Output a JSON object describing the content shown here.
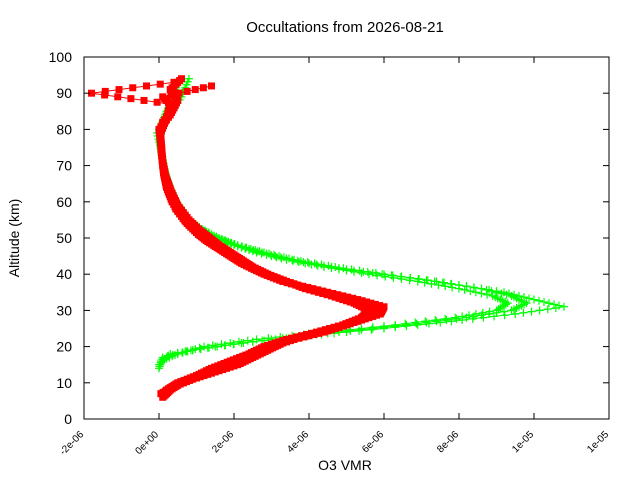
{
  "chart_data": {
    "type": "line",
    "title": "Occultations from 2026-08-21",
    "xlabel": "O3 VMR",
    "ylabel": "Altitude (km)",
    "xlim": [
      -2e-06,
      1.2e-05
    ],
    "ylim": [
      0,
      100
    ],
    "x_ticks": [
      -2e-06,
      0,
      2e-06,
      4e-06,
      6e-06,
      8e-06,
      1e-05,
      1.2e-05
    ],
    "x_tick_labels": [
      "-2e-06",
      "0e+00",
      "2e-06",
      "4e-06",
      "6e-06",
      "8e-06",
      "1e-05",
      "1e-05"
    ],
    "y_ticks": [
      0,
      10,
      20,
      30,
      40,
      50,
      60,
      70,
      80,
      90,
      100
    ],
    "y_tick_labels": [
      "0",
      "10",
      "20",
      "30",
      "40",
      "50",
      "60",
      "70",
      "80",
      "90",
      "100"
    ],
    "grid": false,
    "legend": "none",
    "series": [
      {
        "color": "#00ff00",
        "marker": "plus",
        "profiles": [
          {
            "alt": [
              15,
              18,
              20,
              22,
              24,
              26,
              28,
              30,
              32,
              34,
              36,
              38,
              40,
              42,
              44,
              46,
              48,
              50,
              52,
              55,
              58,
              62,
              66,
              70,
              75,
              80,
              85,
              90,
              93
            ],
            "vmr": [
              0.0,
              3e-07,
              1.5e-06,
              3e-06,
              4.8e-06,
              6.6e-06,
              8.2e-06,
              9.4e-06,
              9.8e-06,
              9.4e-06,
              8.6e-06,
              7.4e-06,
              6e-06,
              4.7e-06,
              3.6e-06,
              2.8e-06,
              2.1e-06,
              1.6e-06,
              1.2e-06,
              8e-07,
              6e-07,
              3.5e-07,
              2e-07,
              1.2e-07,
              5e-08,
              0.0,
              2e-07,
              4e-07,
              5e-07
            ]
          },
          {
            "alt": [
              14,
              17,
              19,
              21,
              23,
              25,
              27,
              29,
              31,
              33,
              35,
              37,
              39,
              41,
              43,
              45,
              47,
              49,
              51,
              54,
              57,
              61,
              65,
              69,
              74,
              79,
              84,
              89,
              94
            ],
            "vmr": [
              0.0,
              1e-07,
              9e-07,
              2.2e-06,
              4e-06,
              6e-06,
              7.8e-06,
              9.5e-06,
              1.08e-05,
              1e-05,
              9.2e-06,
              8e-06,
              6.7e-06,
              5.2e-06,
              4e-06,
              3.1e-06,
              2.4e-06,
              1.8e-06,
              1.4e-06,
              9e-07,
              6.5e-07,
              4e-07,
              2.5e-07,
              1.5e-07,
              6e-08,
              -5e-08,
              3e-07,
              6e-07,
              8e-07
            ]
          },
          {
            "alt": [
              16,
              18,
              20,
              22,
              24,
              26,
              28,
              30,
              32,
              34,
              36,
              38,
              40,
              42,
              44,
              46,
              48,
              50,
              53,
              56,
              60,
              64,
              68,
              72,
              77,
              82,
              87,
              91
            ],
            "vmr": [
              5e-08,
              5e-07,
              1.2e-06,
              2.6e-06,
              4.5e-06,
              6.3e-06,
              7.9e-06,
              9e-06,
              9.3e-06,
              8.9e-06,
              8e-06,
              6.9e-06,
              5.6e-06,
              4.4e-06,
              3.4e-06,
              2.6e-06,
              2e-06,
              1.5e-06,
              1e-06,
              7e-07,
              4.5e-07,
              3e-07,
              1.6e-07,
              8e-08,
              2e-08,
              1e-07,
              3e-07,
              7e-07
            ]
          }
        ]
      },
      {
        "color": "#ff0000",
        "marker": "square",
        "profiles": [
          {
            "alt": [
              6,
              8,
              10,
              12,
              14,
              16,
              18,
              20,
              22,
              24,
              26,
              28,
              30,
              32,
              34,
              36,
              38,
              40,
              42,
              44,
              46,
              48,
              50,
              53,
              56,
              60,
              64,
              68,
              72,
              76,
              80,
              84,
              88,
              91,
              94
            ],
            "vmr": [
              1e-07,
              3e-07,
              6e-07,
              1.1e-06,
              1.7e-06,
              2.2e-06,
              2.6e-06,
              3e-06,
              3.6e-06,
              4.4e-06,
              5e-06,
              5.5e-06,
              5.8e-06,
              5.5e-06,
              4.8e-06,
              4e-06,
              3.3e-06,
              2.8e-06,
              2.4e-06,
              2.1e-06,
              1.8e-06,
              1.5e-06,
              1.2e-06,
              8.5e-07,
              6e-07,
              3.5e-07,
              2e-07,
              1.2e-07,
              8e-08,
              5e-08,
              0.0,
              3e-07,
              5e-07,
              3e-07,
              6e-07
            ]
          },
          {
            "alt": [
              7,
              9,
              11,
              13,
              15,
              17,
              19,
              21,
              23,
              25,
              27,
              29,
              31,
              33,
              35,
              37,
              39,
              41,
              43,
              45,
              47,
              49,
              51,
              54,
              58,
              62,
              66,
              70,
              74,
              78,
              82,
              86,
              89,
              92
            ],
            "vmr": [
              5e-08,
              4e-07,
              9e-07,
              1.5e-06,
              2.1e-06,
              2.5e-06,
              2.9e-06,
              3.3e-06,
              3.9e-06,
              4.7e-06,
              5.3e-06,
              5.9e-06,
              6e-06,
              5.3e-06,
              4.5e-06,
              3.7e-06,
              3.1e-06,
              2.6e-06,
              2.2e-06,
              1.9e-06,
              1.6e-06,
              1.3e-06,
              1.05e-06,
              7.5e-07,
              4.5e-07,
              3e-07,
              1.6e-07,
              1e-07,
              6e-08,
              3e-08,
              1e-07,
              4e-07,
              1e-07,
              1.4e-06
            ]
          },
          {
            "alt": [
              8,
              10,
              12,
              14,
              16,
              18,
              20,
              22,
              24,
              26,
              28,
              30,
              32,
              34,
              36,
              38,
              40,
              42,
              44,
              46,
              48,
              50,
              52,
              55,
              59,
              63,
              67,
              71,
              75,
              79,
              83,
              87,
              90,
              93
            ],
            "vmr": [
              2e-07,
              5e-07,
              1e-06,
              1.4e-06,
              1.9e-06,
              2.4e-06,
              2.8e-06,
              3.4e-06,
              4.2e-06,
              4.9e-06,
              5.4e-06,
              5.6e-06,
              5.2e-06,
              4.6e-06,
              3.9e-06,
              3.4e-06,
              2.9e-06,
              2.5e-06,
              2.2e-06,
              1.9e-06,
              1.6e-06,
              1.35e-06,
              1.1e-06,
              8e-07,
              5e-07,
              3.2e-07,
              1.8e-07,
              1e-07,
              7e-08,
              4e-08,
              2e-07,
              3e-07,
              -1.8e-06,
              4e-07
            ]
          }
        ]
      }
    ]
  }
}
